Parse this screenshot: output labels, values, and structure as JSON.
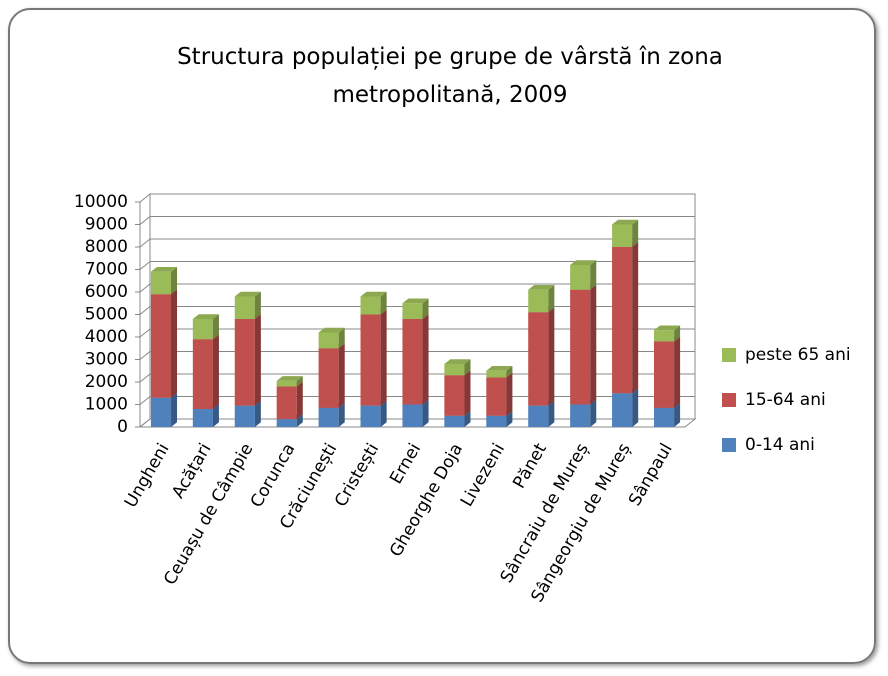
{
  "chart_data": {
    "type": "bar",
    "stacked": true,
    "title": "Structura populației pe grupe de vârstă în zona metropolitană, 2009",
    "categories": [
      "Ungheni",
      "Acățari",
      "Ceuașu de Câmpie",
      "Corunca",
      "Crăciunești",
      "Cristești",
      "Ernei",
      "Gheorghe Doja",
      "Livezeni",
      "Pănet",
      "Sâncraiu de Mureș",
      "Sângeorgiu de Mureș",
      "Sânpaul"
    ],
    "series": [
      {
        "name": "0-14 ani",
        "color": "#4f81bd",
        "values": [
          1300,
          800,
          950,
          350,
          850,
          950,
          1000,
          500,
          500,
          950,
          1000,
          1500,
          850
        ]
      },
      {
        "name": "15-64 ani",
        "color": "#c0504d",
        "values": [
          4600,
          3100,
          3850,
          1450,
          2650,
          4050,
          3800,
          1800,
          1700,
          4150,
          5100,
          6500,
          2950
        ]
      },
      {
        "name": "peste 65 ani",
        "color": "#9bbb59",
        "values": [
          1000,
          900,
          1000,
          250,
          700,
          800,
          700,
          500,
          300,
          1000,
          1100,
          1000,
          500
        ]
      }
    ],
    "ylim": [
      0,
      10000
    ],
    "yticks": [
      0,
      1000,
      2000,
      3000,
      4000,
      5000,
      6000,
      7000,
      8000,
      9000,
      10000
    ],
    "grid": true,
    "legend": "right"
  }
}
